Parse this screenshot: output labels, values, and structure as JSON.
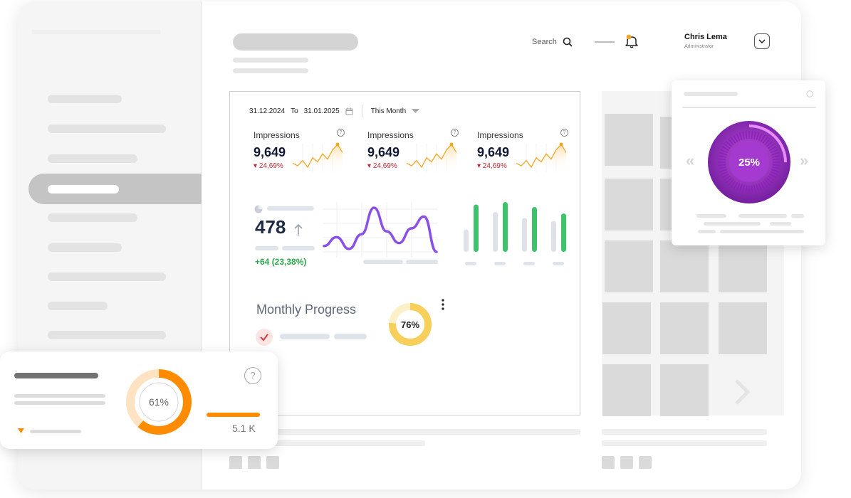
{
  "header": {
    "search_label": "Search",
    "user": {
      "name": "Chris Lema",
      "role": "Administrator"
    }
  },
  "dashboard": {
    "date_from": "31.12.2024",
    "date_to_label": "To",
    "date_to": "31.01.2025",
    "period": "This Month",
    "kpis": [
      {
        "label": "Impressions",
        "value": "9,649",
        "delta": "24,69%",
        "spark": [
          12,
          10,
          14,
          9,
          16,
          13,
          19,
          15,
          22,
          26,
          20
        ]
      },
      {
        "label": "Impressions",
        "value": "9,649",
        "delta": "24,69%",
        "spark": [
          12,
          10,
          14,
          9,
          16,
          13,
          19,
          15,
          22,
          26,
          20
        ]
      },
      {
        "label": "Impressions",
        "value": "9,649",
        "delta": "24,69%",
        "spark": [
          12,
          10,
          14,
          9,
          16,
          13,
          19,
          15,
          22,
          26,
          20
        ]
      }
    ],
    "metric": {
      "value": "478",
      "delta": "+64 (23,38%)"
    },
    "wave": [
      5,
      8,
      4,
      9,
      18,
      10,
      6,
      11,
      15,
      3
    ],
    "bars": [
      {
        "grey": 0.45,
        "green": 0.95
      },
      {
        "grey": 0.8,
        "green": 1.0
      },
      {
        "grey": 0.68,
        "green": 0.9
      },
      {
        "grey": 0.62,
        "green": 0.77
      }
    ],
    "monthly_progress": {
      "title": "Monthly Progress",
      "percent": 76,
      "label": "76%"
    }
  },
  "gauge_card": {
    "percent": 25,
    "label": "25%"
  },
  "progress_card": {
    "percent": 61,
    "label": "61%",
    "value": "5.1 K"
  },
  "colors": {
    "orange": "#ff8c00",
    "green": "#3ec26a",
    "purple": "#9b2fc7",
    "yellow": "#f7cf5a",
    "red": "#c0262d"
  }
}
